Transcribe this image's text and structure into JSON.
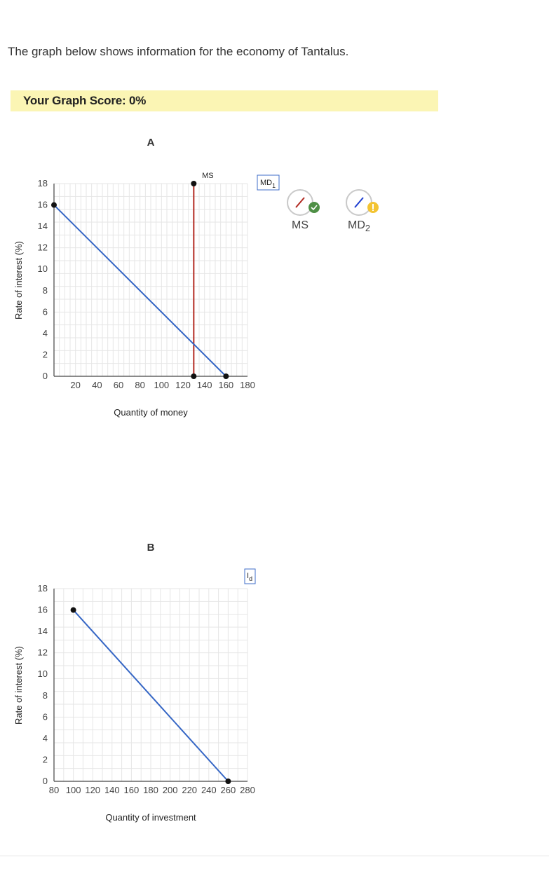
{
  "intro": "The graph below shows information for the economy of Tantalus.",
  "score": "Your Graph Score: 0%",
  "colors": {
    "ms": "#b22a22",
    "md": "#3566c5",
    "grid": "#e6e6e6",
    "check": "#4e8f45",
    "warn": "#f3c433",
    "score_bg": "#fbf5b4"
  },
  "tools": [
    {
      "label": "MS",
      "color": "#b22a22",
      "status": "check-icon"
    },
    {
      "label": "MD",
      "sub": "2",
      "color": "#1f3fd1",
      "status": "warning-icon"
    }
  ],
  "chart_data": [
    {
      "type": "line",
      "panel": "A",
      "xlabel": "Quantity of money",
      "ylabel": "Rate of interest (%)",
      "xlim": [
        0,
        180
      ],
      "ylim": [
        0,
        18
      ],
      "xticks": [
        20,
        40,
        60,
        80,
        100,
        120,
        140,
        160,
        180
      ],
      "yticks": [
        0,
        2,
        4,
        6,
        8,
        10,
        12,
        14,
        16,
        18
      ],
      "grid": true,
      "series": [
        {
          "name": "MS",
          "color": "#b22a22",
          "points": [
            [
              130,
              0
            ],
            [
              130,
              18
            ]
          ]
        },
        {
          "name": "MD",
          "sub": "1",
          "color": "#3566c5",
          "points": [
            [
              0,
              16
            ],
            [
              160,
              0
            ]
          ]
        }
      ]
    },
    {
      "type": "line",
      "panel": "B",
      "xlabel": "Quantity of investment",
      "ylabel": "Rate of interest (%)",
      "xlim": [
        80,
        280
      ],
      "ylim": [
        0,
        18
      ],
      "xticks": [
        80,
        100,
        120,
        140,
        160,
        180,
        200,
        220,
        240,
        260,
        280
      ],
      "yticks": [
        0,
        2,
        4,
        6,
        8,
        10,
        12,
        14,
        16,
        18
      ],
      "grid": true,
      "series": [
        {
          "name": "I",
          "sub": "d",
          "color": "#3566c5",
          "points": [
            [
              100,
              16
            ],
            [
              260,
              0
            ]
          ]
        }
      ]
    }
  ]
}
